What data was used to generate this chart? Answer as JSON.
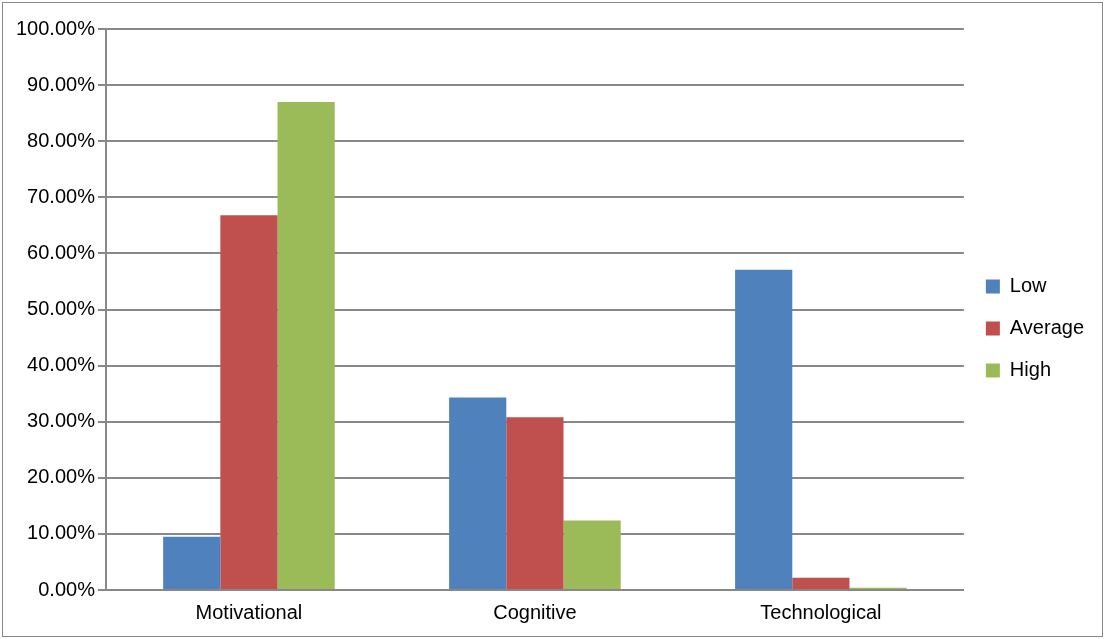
{
  "chart_data": {
    "type": "bar",
    "categories": [
      "Motivational",
      "Cognitive",
      "Technological"
    ],
    "series": [
      {
        "name": "Low",
        "color": "#4f81bd",
        "values": [
          9.5,
          34.3,
          57.1
        ]
      },
      {
        "name": "Average",
        "color": "#c0504d",
        "values": [
          66.8,
          30.8,
          2.2
        ]
      },
      {
        "name": "High",
        "color": "#9bbb59",
        "values": [
          87.0,
          12.4,
          0.4
        ]
      }
    ],
    "ylim": [
      0,
      100
    ],
    "yticks": [
      {
        "value": 0,
        "label": "0.00%"
      },
      {
        "value": 10,
        "label": "10.00%"
      },
      {
        "value": 20,
        "label": "20.00%"
      },
      {
        "value": 30,
        "label": "30.00%"
      },
      {
        "value": 40,
        "label": "40.00%"
      },
      {
        "value": 50,
        "label": "50.00%"
      },
      {
        "value": 60,
        "label": "60.00%"
      },
      {
        "value": 70,
        "label": "70.00%"
      },
      {
        "value": 80,
        "label": "80.00%"
      },
      {
        "value": 90,
        "label": "90.00%"
      },
      {
        "value": 100,
        "label": "100.00%"
      }
    ],
    "grid": "y",
    "legend": "right"
  }
}
